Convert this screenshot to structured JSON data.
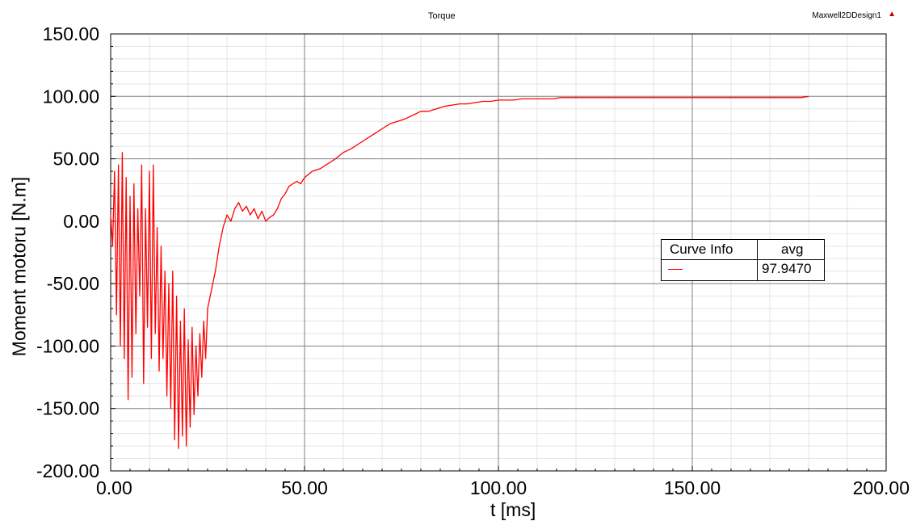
{
  "header": {
    "title": "Torque",
    "design_name": "Maxwell2DDesign1",
    "design_mark": "▲"
  },
  "legend": {
    "col1": "Curve Info",
    "col2": "avg",
    "avg_value": "97.9470",
    "swatch_color": "#ff0000"
  },
  "chart_data": {
    "type": "line",
    "title": "Torque",
    "xlabel": "t [ms]",
    "ylabel": "Moment motoru [N.m]",
    "xlim": [
      0,
      200
    ],
    "ylim": [
      -200,
      150
    ],
    "xticks": [
      "0.00",
      "50.00",
      "100.00",
      "150.00",
      "200.00"
    ],
    "yticks": [
      "150.00",
      "100.00",
      "50.00",
      "0.00",
      "-50.00",
      "-100.00",
      "-150.00",
      "-200.00"
    ],
    "grid": true,
    "legend_position": "right-middle",
    "series": [
      {
        "color": "#ff0000",
        "x": [
          0,
          0.5,
          1,
          1.5,
          2,
          2.5,
          3,
          3.5,
          4,
          4.5,
          5,
          5.5,
          6,
          6.5,
          7,
          7.5,
          8,
          8.5,
          9,
          9.5,
          10,
          10.5,
          11,
          11.5,
          12,
          12.5,
          13,
          13.5,
          14,
          14.5,
          15,
          15.5,
          16,
          16.5,
          17,
          17.5,
          18,
          18.5,
          19,
          19.5,
          20,
          20.5,
          21,
          21.5,
          22,
          22.5,
          23,
          23.5,
          24,
          24.5,
          25,
          26,
          27,
          28,
          29,
          30,
          31,
          32,
          33,
          34,
          35,
          36,
          37,
          38,
          39,
          40,
          41,
          42,
          43,
          44,
          45,
          46,
          47,
          48,
          49,
          50,
          52,
          54,
          56,
          58,
          60,
          62,
          64,
          66,
          68,
          70,
          72,
          74,
          76,
          78,
          80,
          82,
          84,
          86,
          88,
          90,
          92,
          94,
          96,
          98,
          100,
          102,
          104,
          106,
          108,
          110,
          112,
          114,
          116,
          118,
          120,
          122,
          124,
          126,
          128,
          130,
          132,
          134,
          136,
          138,
          140,
          142,
          144,
          146,
          148,
          150,
          152,
          154,
          156,
          158,
          160,
          162,
          164,
          166,
          168,
          170,
          172,
          174,
          176,
          178,
          180
        ],
        "y": [
          5,
          -20,
          40,
          -75,
          45,
          -100,
          55,
          -110,
          35,
          -143,
          20,
          -125,
          30,
          -90,
          10,
          -60,
          45,
          -130,
          10,
          -85,
          40,
          -110,
          45,
          -90,
          -5,
          -120,
          -20,
          -110,
          -40,
          -140,
          -50,
          -150,
          -40,
          -175,
          -60,
          -182,
          -80,
          -172,
          -70,
          -180,
          -95,
          -165,
          -85,
          -155,
          -100,
          -140,
          -90,
          -125,
          -80,
          -110,
          -70,
          -55,
          -40,
          -20,
          -5,
          5,
          0,
          10,
          15,
          8,
          12,
          5,
          10,
          2,
          8,
          0,
          3,
          5,
          10,
          18,
          22,
          28,
          30,
          32,
          30,
          35,
          40,
          42,
          46,
          50,
          55,
          58,
          62,
          66,
          70,
          74,
          78,
          80,
          82,
          85,
          88,
          88,
          90,
          92,
          93,
          94,
          94,
          95,
          96,
          96,
          97,
          97,
          97,
          98,
          98,
          98,
          98,
          98,
          99,
          99,
          99,
          99,
          99,
          99,
          99,
          99,
          99,
          99,
          99,
          99,
          99,
          99,
          99,
          99,
          99,
          99,
          99,
          99,
          99,
          99,
          99,
          99,
          99,
          99,
          99,
          99,
          99,
          99,
          99,
          99,
          100
        ]
      }
    ]
  }
}
